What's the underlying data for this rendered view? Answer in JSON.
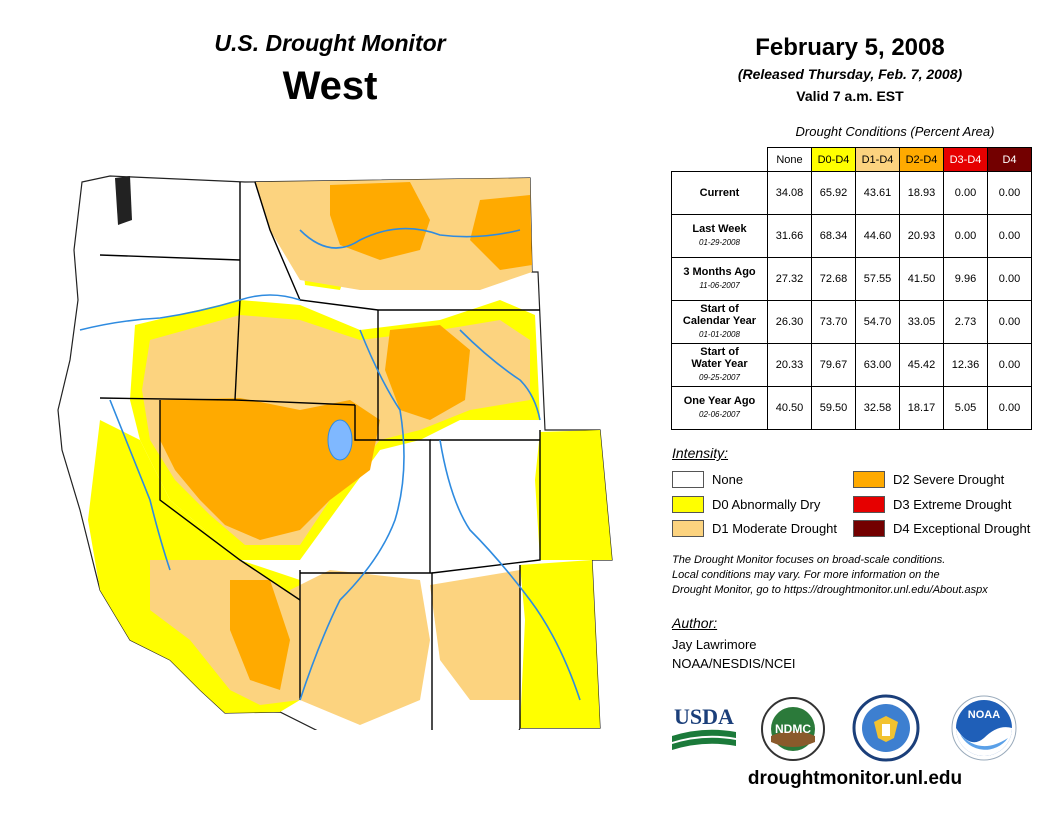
{
  "header": {
    "title": "U.S. Drought Monitor",
    "region": "West",
    "date": "February 5, 2008",
    "released": "(Released Thursday, Feb. 7, 2008)",
    "valid": "Valid 7 a.m. EST"
  },
  "table": {
    "caption": "Drought Conditions (Percent Area)",
    "columns": [
      {
        "label": "None",
        "color": "#ffffff",
        "text_color": "#000000"
      },
      {
        "label": "D0-D4",
        "color": "#ffff00",
        "text_color": "#000000"
      },
      {
        "label": "D1-D4",
        "color": "#fcd37f",
        "text_color": "#000000"
      },
      {
        "label": "D2-D4",
        "color": "#ffaa00",
        "text_color": "#000000"
      },
      {
        "label": "D3-D4",
        "color": "#e60000",
        "text_color": "#ffffff"
      },
      {
        "label": "D4",
        "color": "#730000",
        "text_color": "#ffffff"
      }
    ],
    "rows": [
      {
        "label": "Current",
        "label2": "",
        "date": "",
        "values": [
          "34.08",
          "65.92",
          "43.61",
          "18.93",
          "0.00",
          "0.00"
        ]
      },
      {
        "label": "Last Week",
        "label2": "",
        "date": "01-29-2008",
        "values": [
          "31.66",
          "68.34",
          "44.60",
          "20.93",
          "0.00",
          "0.00"
        ]
      },
      {
        "label": "3 Months Ago",
        "label2": "",
        "date": "11-06-2007",
        "values": [
          "27.32",
          "72.68",
          "57.55",
          "41.50",
          "9.96",
          "0.00"
        ]
      },
      {
        "label": "Start of",
        "label2": "Calendar Year",
        "date": "01-01-2008",
        "values": [
          "26.30",
          "73.70",
          "54.70",
          "33.05",
          "2.73",
          "0.00"
        ]
      },
      {
        "label": "Start of",
        "label2": "Water Year",
        "date": "09-25-2007",
        "values": [
          "20.33",
          "79.67",
          "63.00",
          "45.42",
          "12.36",
          "0.00"
        ]
      },
      {
        "label": "One Year Ago",
        "label2": "",
        "date": "02-06-2007",
        "values": [
          "40.50",
          "59.50",
          "32.58",
          "18.17",
          "5.05",
          "0.00"
        ]
      }
    ]
  },
  "legend": {
    "title": "Intensity:",
    "items": [
      {
        "label": "None",
        "color": "#ffffff"
      },
      {
        "label": "D0 Abnormally Dry",
        "color": "#ffff00"
      },
      {
        "label": "D1 Moderate Drought",
        "color": "#fcd37f"
      },
      {
        "label": "D2 Severe Drought",
        "color": "#ffaa00"
      },
      {
        "label": "D3 Extreme Drought",
        "color": "#e60000"
      },
      {
        "label": "D4 Exceptional Drought",
        "color": "#730000"
      }
    ]
  },
  "note": {
    "line1": "The Drought Monitor focuses on broad-scale conditions.",
    "line2": "Local conditions may vary. For more information on the",
    "line3": "Drought Monitor, go to https://droughtmonitor.unl.edu/About.aspx"
  },
  "author": {
    "title": "Author:",
    "name": "Jay Lawrimore",
    "org": "NOAA/NESDIS/NCEI"
  },
  "logos": {
    "usda": "USDA",
    "ndmc": "NDMC",
    "noaa": "NOAA"
  },
  "footer": {
    "website": "droughtmonitor.unl.edu"
  }
}
